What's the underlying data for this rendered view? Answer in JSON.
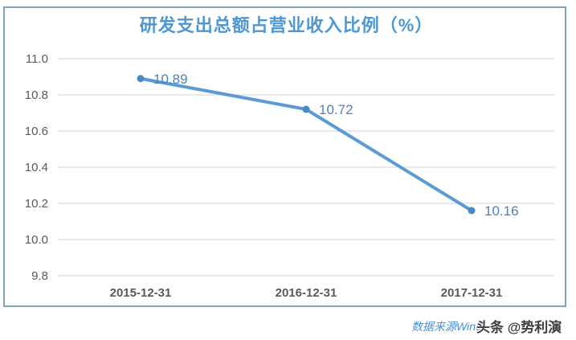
{
  "chart": {
    "title": "研发支出总额占营业收入比例（%）",
    "footer": {
      "source_text": "数据来源Wind",
      "watermark_text": "头条 @势利演"
    },
    "colors": {
      "title": "#4e97d1",
      "line": "#5b9bd5",
      "marker": "#4a8ac4",
      "data_label": "#4e81bd",
      "grid": "#d9d9d9",
      "axis_text": "#595959",
      "frame": "#7fa3b9",
      "source_text": "#4a90d9",
      "watermark_text": "#3d3d3d"
    }
  },
  "chart_data": {
    "type": "line",
    "title": "研发支出总额占营业收入比例（%）",
    "categories": [
      "2015-12-31",
      "2016-12-31",
      "2017-12-31"
    ],
    "values": [
      10.89,
      10.72,
      10.16
    ],
    "data_labels": [
      "10.89",
      "10.72",
      "10.16"
    ],
    "yticks": [
      9.8,
      10.0,
      10.2,
      10.4,
      10.6,
      10.8,
      11.0
    ],
    "ytick_labels": [
      "9.8",
      "10.0",
      "10.2",
      "10.4",
      "10.6",
      "10.8",
      "11.0"
    ],
    "ylim": [
      9.8,
      11.0
    ],
    "xlabel": "",
    "ylabel": "",
    "grid": true,
    "legend": "none",
    "line_color": "#5b9bd5",
    "marker": "circle"
  }
}
